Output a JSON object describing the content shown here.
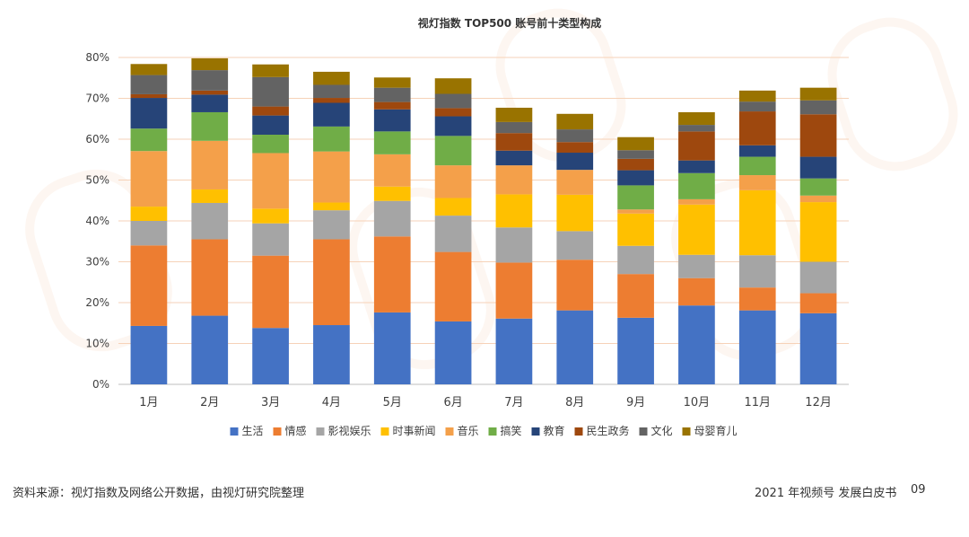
{
  "footer": {
    "source": "资料来源：视灯指数及网络公开数据，由视灯研究院整理",
    "report": "2021 年视频号  发展白皮书",
    "page_number": "09"
  },
  "chart_data": {
    "type": "bar",
    "stacked": true,
    "title": "视灯指数 TOP500 账号前十类型构成",
    "xlabel": "",
    "ylabel": "",
    "ylim": [
      0,
      80
    ],
    "yticks": [
      "0%",
      "10%",
      "20%",
      "30%",
      "40%",
      "50%",
      "60%",
      "70%",
      "80%"
    ],
    "grid": true,
    "legend_position": "bottom",
    "categories": [
      "1月",
      "2月",
      "3月",
      "4月",
      "5月",
      "6月",
      "7月",
      "8月",
      "9月",
      "10月",
      "11月",
      "12月"
    ],
    "series": [
      {
        "name": "生活",
        "color": "#4472C4",
        "values": [
          14.3,
          16.8,
          13.8,
          14.5,
          17.6,
          15.4,
          16.1,
          18.1,
          16.3,
          19.3,
          18.1,
          17.4
        ]
      },
      {
        "name": "情感",
        "color": "#ED7D31",
        "values": [
          19.7,
          18.7,
          17.7,
          21.0,
          18.6,
          17.0,
          13.7,
          12.4,
          10.7,
          6.7,
          5.6,
          4.9
        ]
      },
      {
        "name": "影视娱乐",
        "color": "#A5A5A5",
        "values": [
          6.0,
          8.9,
          7.9,
          7.1,
          8.7,
          8.9,
          8.6,
          7.0,
          6.9,
          5.7,
          7.9,
          7.7
        ]
      },
      {
        "name": "时事新闻",
        "color": "#FFC000",
        "values": [
          3.5,
          3.3,
          3.6,
          1.9,
          3.5,
          4.3,
          8.1,
          8.9,
          7.9,
          12.3,
          15.9,
          14.6
        ]
      },
      {
        "name": "音乐",
        "color": "#F4A04A",
        "values": [
          13.6,
          11.9,
          13.6,
          12.5,
          7.9,
          8.0,
          7.1,
          6.1,
          1.0,
          1.3,
          3.7,
          1.6
        ]
      },
      {
        "name": "搞笑",
        "color": "#70AD47",
        "values": [
          5.5,
          7.0,
          4.5,
          6.1,
          5.6,
          7.2,
          0.0,
          0.0,
          5.9,
          6.4,
          4.5,
          4.2
        ]
      },
      {
        "name": "教育",
        "color": "#264478",
        "values": [
          7.5,
          4.3,
          4.7,
          5.8,
          5.4,
          4.8,
          3.6,
          4.2,
          3.7,
          3.1,
          2.8,
          5.3
        ]
      },
      {
        "name": "民生政务",
        "color": "#9E480E",
        "values": [
          0.9,
          1.0,
          2.2,
          1.2,
          1.8,
          2.0,
          4.3,
          2.6,
          2.8,
          7.1,
          8.3,
          10.4
        ]
      },
      {
        "name": "文化",
        "color": "#636363",
        "values": [
          4.7,
          5.0,
          7.2,
          3.2,
          3.5,
          3.5,
          2.7,
          3.1,
          2.1,
          1.6,
          2.4,
          3.4
        ]
      },
      {
        "name": "母婴育儿",
        "color": "#997300",
        "values": [
          2.7,
          2.9,
          3.1,
          3.2,
          2.5,
          3.8,
          3.5,
          3.8,
          3.2,
          3.1,
          2.7,
          3.1
        ]
      }
    ]
  }
}
